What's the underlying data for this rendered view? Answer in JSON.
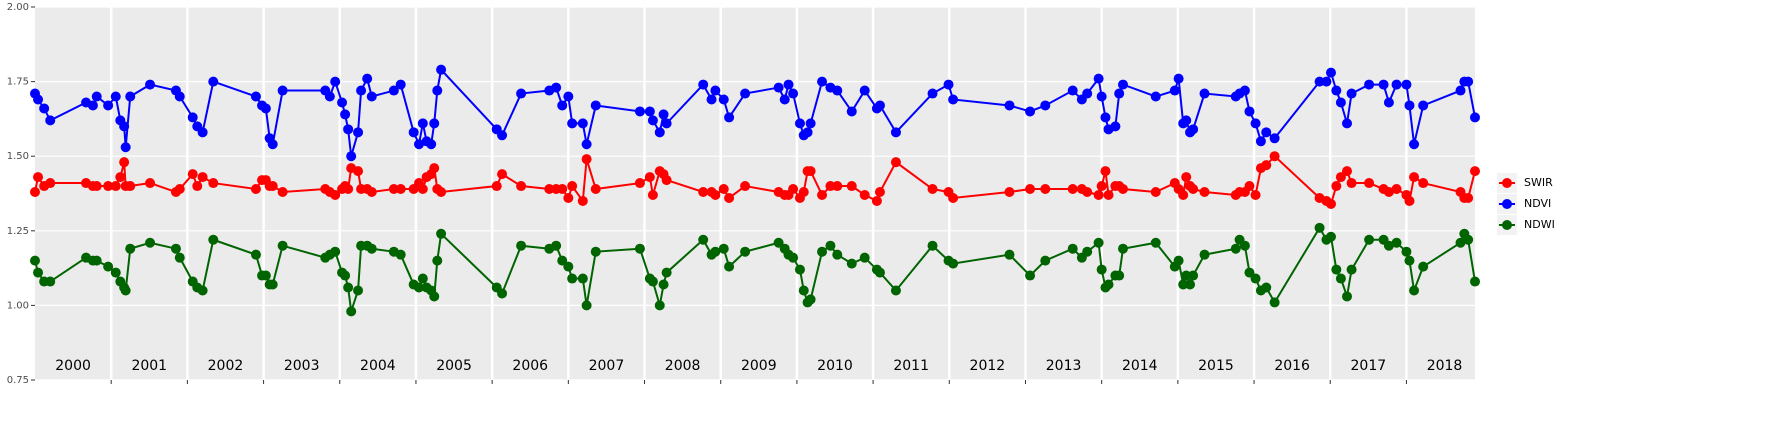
{
  "chart_data": {
    "type": "line",
    "x": [
      2000.0,
      2000.04,
      2000.12,
      2000.2,
      2000.67,
      2000.76,
      2000.81,
      2000.96,
      2001.06,
      2001.12,
      2001.17,
      2001.19,
      2001.25,
      2001.51,
      2001.85,
      2001.9,
      2002.07,
      2002.13,
      2002.2,
      2002.34,
      2002.9,
      2002.98,
      2003.03,
      2003.08,
      2003.12,
      2003.25,
      2003.81,
      2003.87,
      2003.94,
      2004.03,
      2004.07,
      2004.11,
      2004.15,
      2004.24,
      2004.28,
      2004.36,
      2004.42,
      2004.71,
      2004.8,
      2004.97,
      2005.04,
      2005.09,
      2005.14,
      2005.2,
      2005.24,
      2005.28,
      2005.33,
      2006.06,
      2006.13,
      2006.38,
      2006.75,
      2006.84,
      2006.92,
      2007.0,
      2007.05,
      2007.19,
      2007.24,
      2007.36,
      2007.94,
      2008.07,
      2008.11,
      2008.2,
      2008.25,
      2008.29,
      2008.77,
      2008.88,
      2008.93,
      2009.04,
      2009.11,
      2009.32,
      2009.76,
      2009.84,
      2009.89,
      2009.95,
      2010.04,
      2010.09,
      2010.14,
      2010.18,
      2010.33,
      2010.44,
      2010.53,
      2010.72,
      2010.89,
      2011.05,
      2011.09,
      2011.3,
      2011.78,
      2011.99,
      2012.05,
      2012.79,
      2013.06,
      2013.26,
      2013.62,
      2013.74,
      2013.81,
      2013.96,
      2014.0,
      2014.05,
      2014.09,
      2014.18,
      2014.23,
      2014.28,
      2014.71,
      2014.96,
      2015.01,
      2015.07,
      2015.11,
      2015.16,
      2015.2,
      2015.35,
      2015.76,
      2015.81,
      2015.88,
      2015.94,
      2016.02,
      2016.09,
      2016.16,
      2016.27,
      2016.86,
      2016.95,
      2017.01,
      2017.08,
      2017.14,
      2017.22,
      2017.28,
      2017.51,
      2017.7,
      2017.77,
      2017.87,
      2018.0,
      2018.04,
      2018.1,
      2018.22,
      2018.71,
      2018.76,
      2018.81,
      2018.9
    ],
    "series": [
      {
        "name": "SWIR",
        "color": "#ff0000",
        "values": [
          1.38,
          1.43,
          1.4,
          1.41,
          1.41,
          1.4,
          1.4,
          1.4,
          1.4,
          1.43,
          1.48,
          1.4,
          1.4,
          1.41,
          1.38,
          1.39,
          1.44,
          1.4,
          1.43,
          1.41,
          1.39,
          1.42,
          1.42,
          1.4,
          1.4,
          1.38,
          1.39,
          1.38,
          1.37,
          1.39,
          1.4,
          1.39,
          1.46,
          1.45,
          1.39,
          1.39,
          1.38,
          1.39,
          1.39,
          1.39,
          1.41,
          1.39,
          1.43,
          1.44,
          1.46,
          1.39,
          1.38,
          1.4,
          1.44,
          1.4,
          1.39,
          1.39,
          1.39,
          1.36,
          1.4,
          1.35,
          1.49,
          1.39,
          1.41,
          1.43,
          1.37,
          1.45,
          1.44,
          1.42,
          1.38,
          1.38,
          1.37,
          1.39,
          1.36,
          1.4,
          1.38,
          1.37,
          1.37,
          1.39,
          1.36,
          1.38,
          1.45,
          1.45,
          1.37,
          1.4,
          1.4,
          1.4,
          1.37,
          1.35,
          1.38,
          1.48,
          1.39,
          1.38,
          1.36,
          1.38,
          1.39,
          1.39,
          1.39,
          1.39,
          1.38,
          1.37,
          1.4,
          1.45,
          1.37,
          1.4,
          1.4,
          1.39,
          1.38,
          1.41,
          1.39,
          1.37,
          1.43,
          1.4,
          1.39,
          1.38,
          1.37,
          1.38,
          1.38,
          1.4,
          1.37,
          1.46,
          1.47,
          1.5,
          1.36,
          1.35,
          1.34,
          1.4,
          1.43,
          1.45,
          1.41,
          1.41,
          1.39,
          1.38,
          1.39,
          1.37,
          1.35,
          1.43,
          1.41,
          1.38,
          1.36,
          1.36,
          1.45
        ]
      },
      {
        "name": "NDVI",
        "color": "#0000ff",
        "values": [
          1.71,
          1.69,
          1.66,
          1.62,
          1.68,
          1.67,
          1.7,
          1.67,
          1.7,
          1.62,
          1.6,
          1.53,
          1.7,
          1.74,
          1.72,
          1.7,
          1.63,
          1.6,
          1.58,
          1.75,
          1.7,
          1.67,
          1.66,
          1.56,
          1.54,
          1.72,
          1.72,
          1.7,
          1.75,
          1.68,
          1.64,
          1.59,
          1.5,
          1.58,
          1.72,
          1.76,
          1.7,
          1.72,
          1.74,
          1.58,
          1.54,
          1.61,
          1.55,
          1.54,
          1.61,
          1.72,
          1.79,
          1.59,
          1.57,
          1.71,
          1.72,
          1.73,
          1.67,
          1.7,
          1.61,
          1.61,
          1.54,
          1.67,
          1.65,
          1.65,
          1.62,
          1.58,
          1.64,
          1.61,
          1.74,
          1.69,
          1.72,
          1.69,
          1.63,
          1.71,
          1.73,
          1.69,
          1.74,
          1.71,
          1.61,
          1.57,
          1.58,
          1.61,
          1.75,
          1.73,
          1.72,
          1.65,
          1.72,
          1.66,
          1.67,
          1.58,
          1.71,
          1.74,
          1.69,
          1.67,
          1.65,
          1.67,
          1.72,
          1.69,
          1.71,
          1.76,
          1.7,
          1.63,
          1.59,
          1.6,
          1.71,
          1.74,
          1.7,
          1.72,
          1.76,
          1.61,
          1.62,
          1.58,
          1.59,
          1.71,
          1.7,
          1.71,
          1.72,
          1.65,
          1.61,
          1.55,
          1.58,
          1.56,
          1.75,
          1.75,
          1.78,
          1.72,
          1.68,
          1.61,
          1.71,
          1.74,
          1.74,
          1.68,
          1.74,
          1.74,
          1.67,
          1.54,
          1.67,
          1.72,
          1.75,
          1.75,
          1.63
        ]
      },
      {
        "name": "NDWI",
        "color": "#006400",
        "values": [
          1.15,
          1.11,
          1.08,
          1.08,
          1.16,
          1.15,
          1.15,
          1.13,
          1.11,
          1.08,
          1.06,
          1.05,
          1.19,
          1.21,
          1.19,
          1.16,
          1.08,
          1.06,
          1.05,
          1.22,
          1.17,
          1.1,
          1.1,
          1.07,
          1.07,
          1.2,
          1.16,
          1.17,
          1.18,
          1.11,
          1.1,
          1.06,
          0.98,
          1.05,
          1.2,
          1.2,
          1.19,
          1.18,
          1.17,
          1.07,
          1.06,
          1.09,
          1.06,
          1.05,
          1.03,
          1.15,
          1.24,
          1.06,
          1.04,
          1.2,
          1.19,
          1.2,
          1.15,
          1.13,
          1.09,
          1.09,
          1.0,
          1.18,
          1.19,
          1.09,
          1.08,
          1.0,
          1.07,
          1.11,
          1.22,
          1.17,
          1.18,
          1.19,
          1.13,
          1.18,
          1.21,
          1.19,
          1.17,
          1.16,
          1.12,
          1.05,
          1.01,
          1.02,
          1.18,
          1.2,
          1.17,
          1.14,
          1.16,
          1.12,
          1.11,
          1.05,
          1.2,
          1.15,
          1.14,
          1.17,
          1.1,
          1.15,
          1.19,
          1.16,
          1.18,
          1.21,
          1.12,
          1.06,
          1.07,
          1.1,
          1.1,
          1.19,
          1.21,
          1.13,
          1.15,
          1.07,
          1.1,
          1.07,
          1.1,
          1.17,
          1.19,
          1.22,
          1.2,
          1.11,
          1.09,
          1.05,
          1.06,
          1.01,
          1.26,
          1.22,
          1.23,
          1.12,
          1.09,
          1.03,
          1.12,
          1.22,
          1.22,
          1.2,
          1.21,
          1.18,
          1.15,
          1.05,
          1.13,
          1.21,
          1.24,
          1.22,
          1.08
        ]
      }
    ],
    "xlim": [
      2000,
      2018.9
    ],
    "xticks": [
      2001,
      2002,
      2003,
      2004,
      2005,
      2006,
      2007,
      2008,
      2009,
      2010,
      2011,
      2012,
      2013,
      2014,
      2015,
      2016,
      2017,
      2018
    ],
    "year_labels": [
      2000,
      2001,
      2002,
      2003,
      2004,
      2005,
      2006,
      2007,
      2008,
      2009,
      2010,
      2011,
      2012,
      2013,
      2014,
      2015,
      2016,
      2017,
      2018
    ],
    "ylim": [
      0.75,
      2
    ],
    "yticks": [
      0.75,
      {
        "value": 1,
        "label": "1.00"
      },
      1.25,
      {
        "value": 1.5,
        "label": "1.50"
      },
      1.75,
      {
        "value": 2,
        "label": "2.00"
      }
    ],
    "grid": true,
    "legend": "right"
  }
}
